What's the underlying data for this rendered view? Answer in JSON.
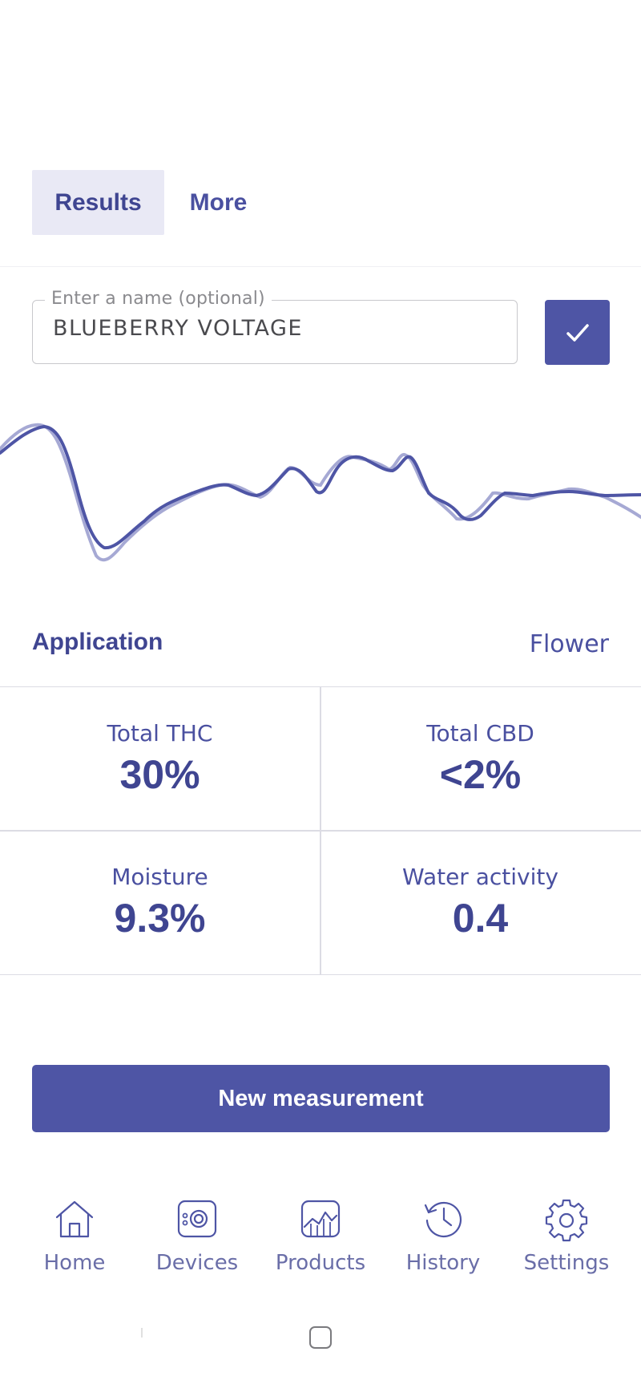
{
  "tabs": [
    {
      "label": "Results",
      "active": true
    },
    {
      "label": "More",
      "active": false
    }
  ],
  "name_field": {
    "legend": "Enter a name (optional)",
    "value": "BLUEBERRY VOLTAGE"
  },
  "application": {
    "label": "Application",
    "value": "Flower"
  },
  "results": [
    {
      "label": "Total THC",
      "value": "30%"
    },
    {
      "label": "Total CBD",
      "value": "<2%"
    },
    {
      "label": "Moisture",
      "value": "9.3%"
    },
    {
      "label": "Water activity",
      "value": "0.4"
    }
  ],
  "new_measurement_label": "New measurement",
  "nav": [
    {
      "label": "Home",
      "icon": "home-icon"
    },
    {
      "label": "Devices",
      "icon": "device-icon"
    },
    {
      "label": "Products",
      "icon": "chart-icon"
    },
    {
      "label": "History",
      "icon": "history-icon"
    },
    {
      "label": "Settings",
      "icon": "gear-icon"
    }
  ],
  "colors": {
    "accent": "#4e55a5",
    "accent_light": "#e9e9f5",
    "reference_line": "#a6a9d4"
  }
}
